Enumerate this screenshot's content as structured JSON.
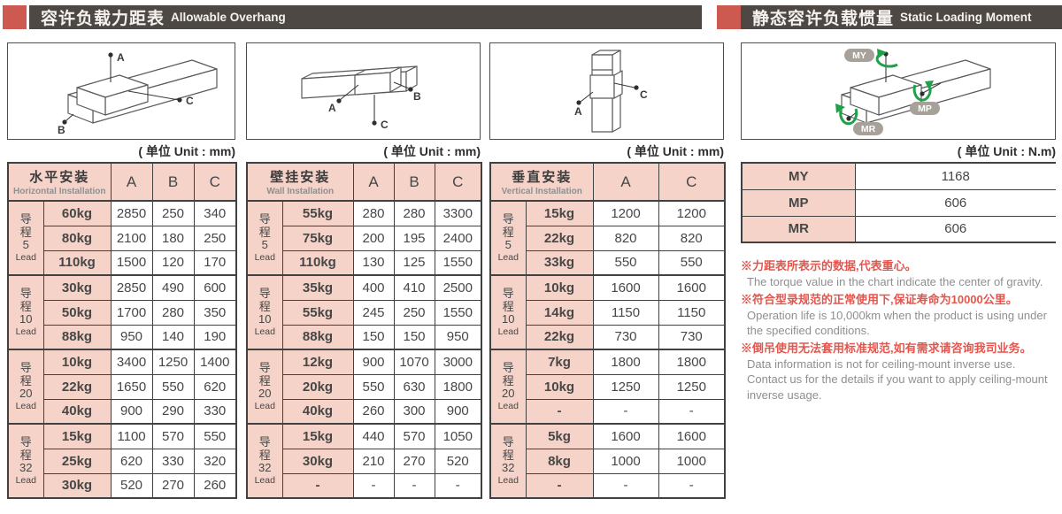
{
  "headers": {
    "left": {
      "zh": "容许负载力距表",
      "en": "Allowable Overhang"
    },
    "right": {
      "zh": "静态容许负载惯量",
      "en": "Static Loading Moment"
    }
  },
  "units": {
    "mm": "( 单位 Unit : mm)",
    "nm": "( 单位 Unit : N.m)"
  },
  "diagrams": {
    "box1": {
      "a": "A",
      "b": "B",
      "c": "C"
    },
    "box2": {
      "a": "A",
      "b": "B",
      "c": "C"
    },
    "box3": {
      "a": "A",
      "c": "C"
    },
    "box4": {
      "my": "MY",
      "mp": "MP",
      "mr": "MR"
    }
  },
  "tables": [
    {
      "title_zh": "水平安装",
      "title_en": "Horizontal Installation",
      "columns": [
        "A",
        "B",
        "C"
      ],
      "groups": [
        {
          "lead_lines": [
            "导",
            "程",
            "5",
            "Lead"
          ],
          "rows": [
            {
              "load": "60kg",
              "values": [
                "2850",
                "250",
                "340"
              ]
            },
            {
              "load": "80kg",
              "values": [
                "2100",
                "180",
                "250"
              ]
            },
            {
              "load": "110kg",
              "values": [
                "1500",
                "120",
                "170"
              ]
            }
          ]
        },
        {
          "lead_lines": [
            "导",
            "程",
            "10",
            "Lead"
          ],
          "rows": [
            {
              "load": "30kg",
              "values": [
                "2850",
                "490",
                "600"
              ]
            },
            {
              "load": "50kg",
              "values": [
                "1700",
                "280",
                "350"
              ]
            },
            {
              "load": "88kg",
              "values": [
                "950",
                "140",
                "190"
              ]
            }
          ]
        },
        {
          "lead_lines": [
            "导",
            "程",
            "20",
            "Lead"
          ],
          "rows": [
            {
              "load": "10kg",
              "values": [
                "3400",
                "1250",
                "1400"
              ]
            },
            {
              "load": "22kg",
              "values": [
                "1650",
                "550",
                "620"
              ]
            },
            {
              "load": "40kg",
              "values": [
                "900",
                "290",
                "330"
              ]
            }
          ]
        },
        {
          "lead_lines": [
            "导",
            "程",
            "32",
            "Lead"
          ],
          "rows": [
            {
              "load": "15kg",
              "values": [
                "1100",
                "570",
                "550"
              ]
            },
            {
              "load": "25kg",
              "values": [
                "620",
                "330",
                "320"
              ]
            },
            {
              "load": "30kg",
              "values": [
                "520",
                "270",
                "260"
              ]
            }
          ]
        }
      ]
    },
    {
      "title_zh": "壁挂安装",
      "title_en": "Wall Installation",
      "columns": [
        "A",
        "B",
        "C"
      ],
      "groups": [
        {
          "lead_lines": [
            "导",
            "程",
            "5",
            "Lead"
          ],
          "rows": [
            {
              "load": "55kg",
              "values": [
                "280",
                "280",
                "3300"
              ]
            },
            {
              "load": "75kg",
              "values": [
                "200",
                "195",
                "2400"
              ]
            },
            {
              "load": "110kg",
              "values": [
                "130",
                "125",
                "1550"
              ]
            }
          ]
        },
        {
          "lead_lines": [
            "导",
            "程",
            "10",
            "Lead"
          ],
          "rows": [
            {
              "load": "35kg",
              "values": [
                "400",
                "410",
                "2500"
              ]
            },
            {
              "load": "55kg",
              "values": [
                "245",
                "250",
                "1550"
              ]
            },
            {
              "load": "88kg",
              "values": [
                "150",
                "150",
                "950"
              ]
            }
          ]
        },
        {
          "lead_lines": [
            "导",
            "程",
            "20",
            "Lead"
          ],
          "rows": [
            {
              "load": "12kg",
              "values": [
                "900",
                "1070",
                "3000"
              ]
            },
            {
              "load": "20kg",
              "values": [
                "550",
                "630",
                "1800"
              ]
            },
            {
              "load": "40kg",
              "values": [
                "260",
                "300",
                "900"
              ]
            }
          ]
        },
        {
          "lead_lines": [
            "导",
            "程",
            "32",
            "Lead"
          ],
          "rows": [
            {
              "load": "15kg",
              "values": [
                "440",
                "570",
                "1050"
              ]
            },
            {
              "load": "30kg",
              "values": [
                "210",
                "270",
                "520"
              ]
            },
            {
              "load": "-",
              "values": [
                "-",
                "-",
                "-"
              ]
            }
          ]
        }
      ]
    },
    {
      "title_zh": "垂直安装",
      "title_en": "Vertical Installation",
      "columns": [
        "A",
        "C"
      ],
      "groups": [
        {
          "lead_lines": [
            "导",
            "程",
            "5",
            "Lead"
          ],
          "rows": [
            {
              "load": "15kg",
              "values": [
                "1200",
                "1200"
              ]
            },
            {
              "load": "22kg",
              "values": [
                "820",
                "820"
              ]
            },
            {
              "load": "33kg",
              "values": [
                "550",
                "550"
              ]
            }
          ]
        },
        {
          "lead_lines": [
            "导",
            "程",
            "10",
            "Lead"
          ],
          "rows": [
            {
              "load": "10kg",
              "values": [
                "1600",
                "1600"
              ]
            },
            {
              "load": "14kg",
              "values": [
                "1150",
                "1150"
              ]
            },
            {
              "load": "22kg",
              "values": [
                "730",
                "730"
              ]
            }
          ]
        },
        {
          "lead_lines": [
            "导",
            "程",
            "20",
            "Lead"
          ],
          "rows": [
            {
              "load": "7kg",
              "values": [
                "1800",
                "1800"
              ]
            },
            {
              "load": "10kg",
              "values": [
                "1250",
                "1250"
              ]
            },
            {
              "load": "-",
              "values": [
                "-",
                "-"
              ]
            }
          ]
        },
        {
          "lead_lines": [
            "导",
            "程",
            "32",
            "Lead"
          ],
          "rows": [
            {
              "load": "5kg",
              "values": [
                "1600",
                "1600"
              ]
            },
            {
              "load": "8kg",
              "values": [
                "1000",
                "1000"
              ]
            },
            {
              "load": "-",
              "values": [
                "-",
                "-"
              ]
            }
          ]
        }
      ]
    }
  ],
  "moment_table": {
    "rows": [
      {
        "label": "MY",
        "value": "1168"
      },
      {
        "label": "MP",
        "value": "606"
      },
      {
        "label": "MR",
        "value": "606"
      }
    ]
  },
  "notes": [
    {
      "zh": "※力距表所表示的数据,代表重心。",
      "en": [
        "The torque value in the chart indicate the center of gravity."
      ]
    },
    {
      "zh": "※符合型录规范的正常使用下,保证寿命为10000公里。",
      "en": [
        "Operation life is 10,000km when the product is using under the specified conditions."
      ]
    },
    {
      "zh": "※倒吊使用无法套用标准规范,如有需求请咨询我司业务。",
      "en": [
        "Data information is not for ceiling-mount inverse use.",
        "Contact us for the details if you want to apply ceiling-mount inverse usage."
      ]
    }
  ],
  "colors": {
    "accent_red": "#cd5a51",
    "header_bar": "#4d4843",
    "cell_pink": "#f5d3c8",
    "note_red": "#e4564d",
    "note_gray": "#8f8f8f",
    "arrow_green": "#1fa14a",
    "border": "#414141"
  }
}
